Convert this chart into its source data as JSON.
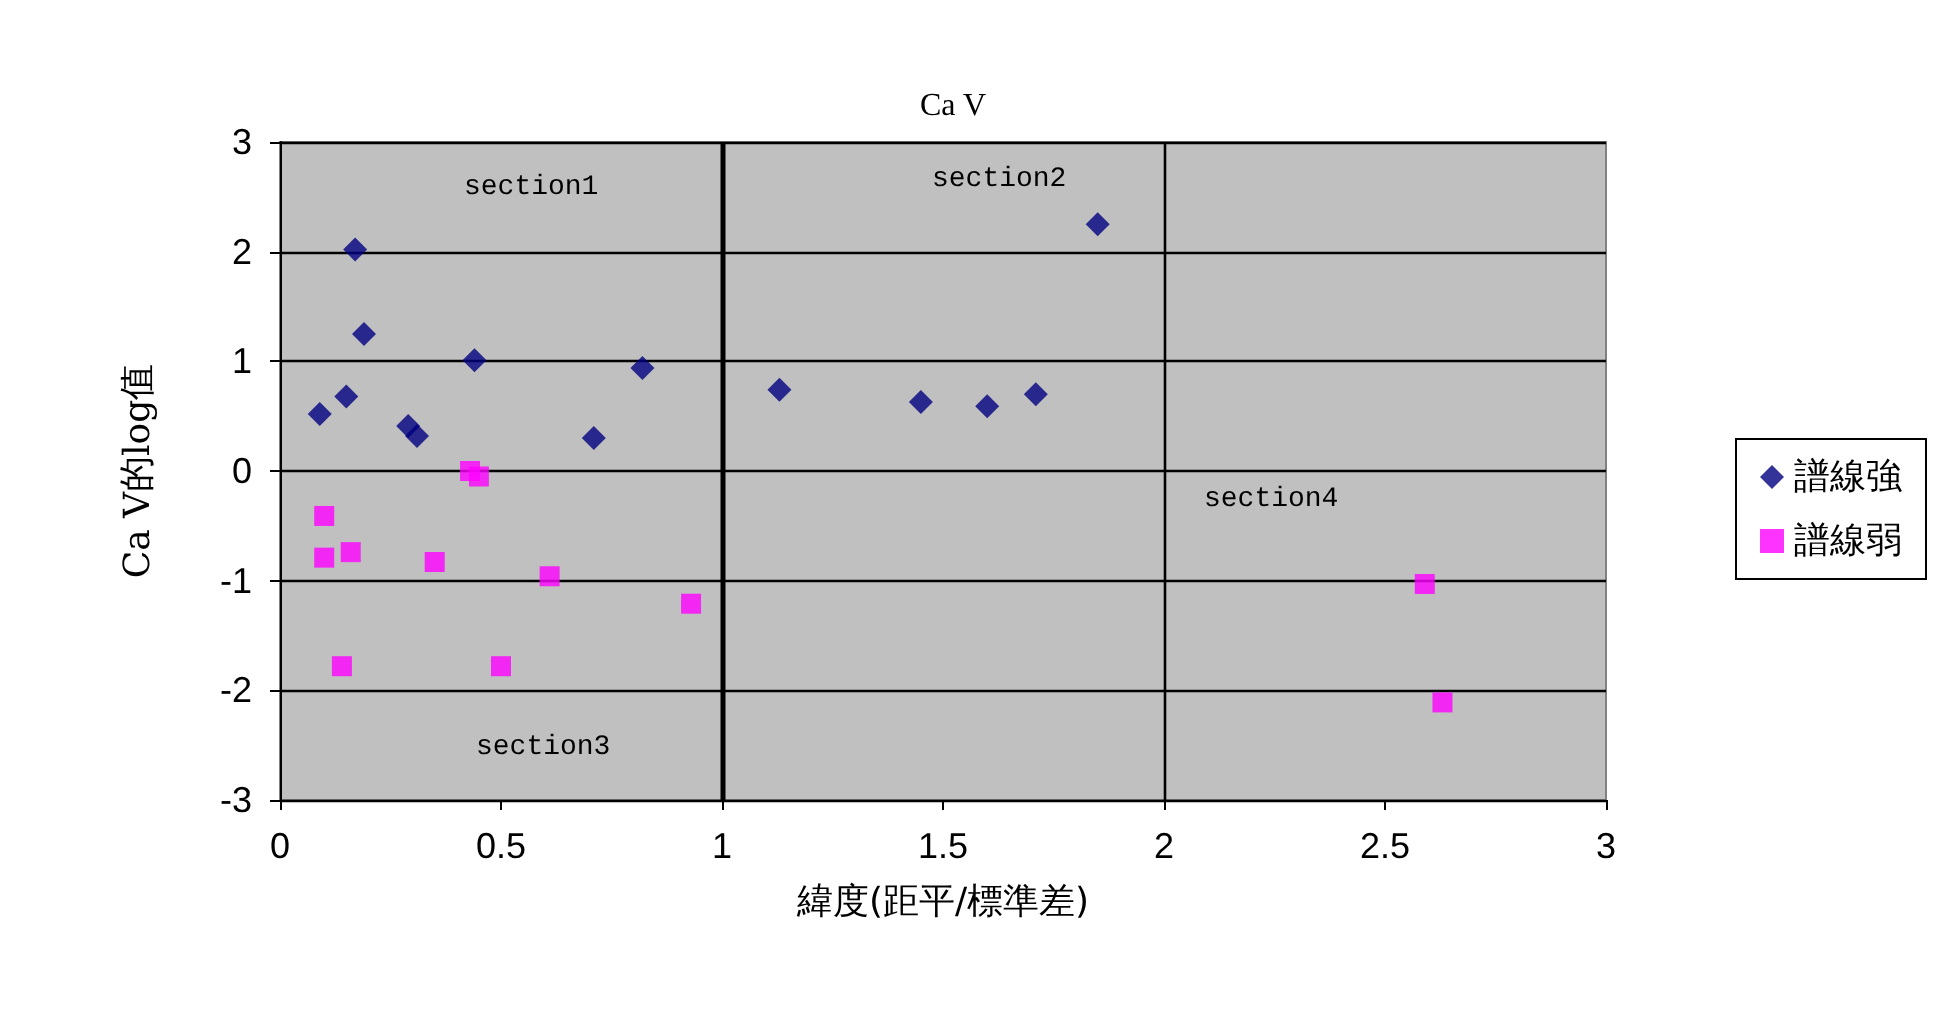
{
  "chart_data": {
    "type": "scatter",
    "title": "Ca V",
    "xlabel": "緯度(距平/標準差)",
    "ylabel": "Ca V的log值",
    "series": [
      {
        "name": "譜線強",
        "color": "#000080",
        "marker": "diamond",
        "x": [
          0.17,
          0.19,
          0.44,
          0.82,
          0.09,
          0.15,
          0.29,
          0.31,
          0.71,
          1.13,
          1.45,
          1.6,
          1.71,
          1.85
        ],
        "values": [
          2.02,
          1.25,
          1.01,
          0.94,
          0.52,
          0.68,
          0.41,
          0.32,
          0.3,
          0.74,
          0.63,
          0.59,
          0.7,
          2.25
        ]
      },
      {
        "name": "譜線弱",
        "color": "#ff00ff",
        "marker": "square",
        "x": [
          0.43,
          0.45,
          0.1,
          0.1,
          0.16,
          0.35,
          0.61,
          0.93,
          0.14,
          0.5,
          2.59,
          2.63
        ],
        "values": [
          0.0,
          -0.05,
          -0.41,
          -0.79,
          -0.74,
          -0.83,
          -0.96,
          -1.21,
          -1.78,
          -1.78,
          -1.03,
          -2.11
        ]
      }
    ],
    "xlim": [
      0,
      3
    ],
    "xticks": [
      0,
      0.5,
      1,
      1.5,
      2,
      2.5,
      3
    ],
    "ylim": [
      -3,
      3
    ],
    "yticks": [
      -3,
      -2,
      -1,
      0,
      1,
      2,
      3
    ],
    "grid": "y",
    "legend": "right",
    "ref_lines": [
      {
        "axis": "x",
        "value": 1,
        "label": null
      },
      {
        "axis": "x",
        "value": 2,
        "label": null
      }
    ],
    "annotations": [
      "section1",
      "section2",
      "section3",
      "section4"
    ]
  }
}
